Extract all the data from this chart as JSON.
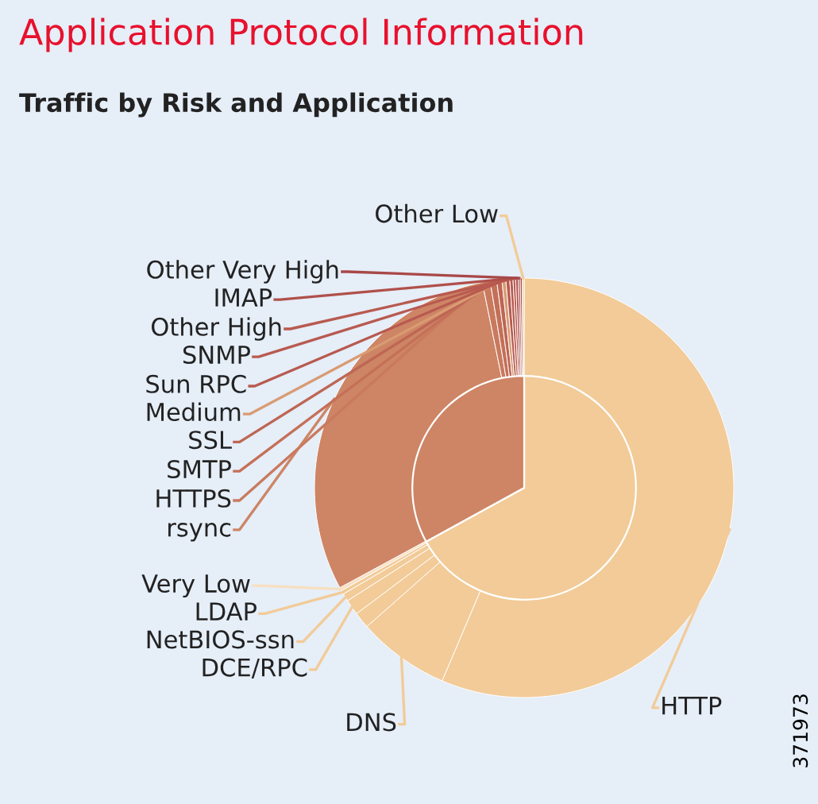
{
  "chart_data": {
    "type": "donut",
    "title": "Application Protocol Information",
    "subtitle": "Traffic by Risk and Application",
    "annotations": [
      "371973"
    ],
    "categories": [
      "HTTP",
      "DNS",
      null,
      "DCE/RPC",
      "NetBIOS-ssn",
      "LDAP",
      "Very Low",
      "rsync",
      "HTTPS",
      "SMTP",
      "SSL",
      "Medium",
      "Sun RPC",
      "SNMP",
      "Other High",
      "IMAP",
      "Other Very High",
      null,
      "Other Low"
    ],
    "series": [
      {
        "values": [
          56.4,
          7.1,
          1.25,
          1.2,
          0.6,
          0.3,
          0.25,
          29.7,
          0.6,
          0.5,
          0.4,
          0.3,
          0.3,
          0.25,
          0.2,
          0.2,
          0.15,
          0.15,
          0.15
        ],
        "colors": [
          "#f2cb98",
          "#f2cb98",
          "#f2cb98",
          "#f2cb98",
          "#f2cb98",
          "#f2cb98",
          "#f7dfc0",
          "#cd8565",
          "#c97a5e",
          "#c47058",
          "#be6654",
          "#d99b72",
          "#b85a50",
          "#b85a50",
          "#b85a50",
          "#b0504a",
          "#a84848",
          "#a84848",
          "#f2cb98"
        ]
      },
      {
        "values": [
          66.85,
          null,
          null,
          null,
          null,
          null,
          null,
          32.9,
          null,
          null,
          null,
          null,
          null,
          null,
          null,
          null,
          null,
          null,
          null
        ],
        "colors": [
          "#f2cb98",
          null,
          null,
          null,
          null,
          null,
          null,
          "#cd8565",
          null,
          null,
          null,
          null,
          null,
          null,
          null,
          null,
          null,
          null,
          null
        ]
      }
    ]
  }
}
